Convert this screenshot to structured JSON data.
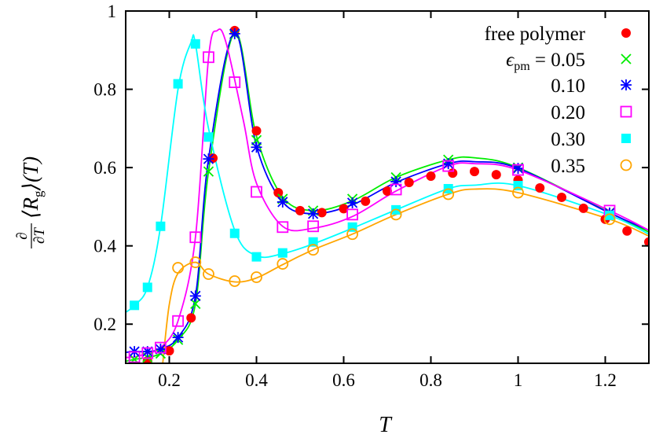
{
  "chart_data": {
    "type": "scatter",
    "title": "",
    "xlabel": "T",
    "ylabel": {
      "numerator": "∂",
      "denominator": "∂T",
      "body": "⟨R",
      "sub": "g",
      "tail": "⟩(T)"
    },
    "xlim": [
      0.1,
      1.3
    ],
    "ylim": [
      0.1,
      1.0
    ],
    "grid": false,
    "legend_placement": "top-right",
    "x_ticks": [
      {
        "v": 0.2,
        "label": "0.2"
      },
      {
        "v": 0.4,
        "label": "0.4"
      },
      {
        "v": 0.6,
        "label": "0.6"
      },
      {
        "v": 0.8,
        "label": "0.8"
      },
      {
        "v": 1.0,
        "label": "1"
      },
      {
        "v": 1.2,
        "label": "1.2"
      }
    ],
    "y_ticks": [
      {
        "v": 0.2,
        "label": "0.2"
      },
      {
        "v": 0.4,
        "label": "0.4"
      },
      {
        "v": 0.6,
        "label": "0.6"
      },
      {
        "v": 0.8,
        "label": "0.8"
      },
      {
        "v": 1.0,
        "label": "1"
      }
    ],
    "legend_prefix": {
      "symbol": "ϵ",
      "sub": "pm",
      "eq": " = "
    },
    "series": [
      {
        "name": "free polymer",
        "color": "#ff0000",
        "marker": "filled-circle",
        "x": [
          0.15,
          0.2,
          0.25,
          0.3,
          0.35,
          0.4,
          0.45,
          0.5,
          0.55,
          0.6,
          0.65,
          0.7,
          0.75,
          0.8,
          0.85,
          0.9,
          0.95,
          1.0,
          1.05,
          1.1,
          1.15,
          1.2,
          1.25,
          1.3
        ],
        "y": [
          0.106,
          0.132,
          0.216,
          0.624,
          0.95,
          0.694,
          0.536,
          0.49,
          0.485,
          0.495,
          0.514,
          0.54,
          0.562,
          0.578,
          0.586,
          0.59,
          0.582,
          0.568,
          0.548,
          0.524,
          0.496,
          0.468,
          0.438,
          0.41
        ],
        "line": null
      },
      {
        "name": "0.05",
        "color": "#00ee00",
        "marker": "cross",
        "x": [
          0.12,
          0.15,
          0.18,
          0.22,
          0.26,
          0.29,
          0.35,
          0.4,
          0.46,
          0.53,
          0.62,
          0.72,
          0.84,
          1.0,
          1.21
        ],
        "y": [
          0.11,
          0.115,
          0.125,
          0.16,
          0.252,
          0.59,
          0.94,
          0.67,
          0.52,
          0.49,
          0.52,
          0.575,
          0.62,
          0.6,
          0.485
        ],
        "line": {
          "x": [
            0.1,
            0.12,
            0.15,
            0.18,
            0.22,
            0.26,
            0.29,
            0.35,
            0.4,
            0.46,
            0.53,
            0.62,
            0.72,
            0.84,
            0.9,
            1.0,
            1.21,
            1.3
          ],
          "y": [
            0.105,
            0.11,
            0.115,
            0.125,
            0.16,
            0.252,
            0.59,
            0.945,
            0.68,
            0.525,
            0.49,
            0.515,
            0.575,
            0.62,
            0.625,
            0.6,
            0.485,
            0.435
          ]
        }
      },
      {
        "name": "0.10",
        "color": "#0000ff",
        "marker": "star",
        "x": [
          0.12,
          0.15,
          0.18,
          0.22,
          0.26,
          0.29,
          0.35,
          0.4,
          0.46,
          0.53,
          0.62,
          0.72,
          0.84,
          1.0,
          1.21
        ],
        "y": [
          0.13,
          0.13,
          0.136,
          0.166,
          0.272,
          0.622,
          0.942,
          0.652,
          0.512,
          0.482,
          0.51,
          0.564,
          0.61,
          0.598,
          0.484
        ],
        "line": {
          "x": [
            0.1,
            0.12,
            0.15,
            0.18,
            0.22,
            0.26,
            0.29,
            0.35,
            0.4,
            0.46,
            0.53,
            0.62,
            0.72,
            0.84,
            0.9,
            1.0,
            1.21,
            1.3
          ],
          "y": [
            0.128,
            0.13,
            0.13,
            0.136,
            0.166,
            0.272,
            0.622,
            0.945,
            0.655,
            0.512,
            0.482,
            0.505,
            0.562,
            0.61,
            0.615,
            0.598,
            0.484,
            0.44
          ]
        }
      },
      {
        "name": "0.20",
        "color": "#ff00ff",
        "marker": "open-square",
        "x": [
          0.12,
          0.15,
          0.18,
          0.22,
          0.26,
          0.29,
          0.35,
          0.4,
          0.46,
          0.53,
          0.62,
          0.72,
          0.84,
          1.0,
          1.21
        ],
        "y": [
          0.116,
          0.126,
          0.14,
          0.208,
          0.422,
          0.882,
          0.818,
          0.538,
          0.448,
          0.45,
          0.48,
          0.544,
          0.604,
          0.594,
          0.49
        ],
        "line": {
          "x": [
            0.1,
            0.12,
            0.15,
            0.18,
            0.22,
            0.26,
            0.29,
            0.31,
            0.33,
            0.37,
            0.4,
            0.46,
            0.53,
            0.62,
            0.72,
            0.84,
            0.9,
            1.0,
            1.21,
            1.3
          ],
          "y": [
            0.115,
            0.116,
            0.126,
            0.14,
            0.208,
            0.422,
            0.88,
            0.95,
            0.92,
            0.72,
            0.56,
            0.45,
            0.445,
            0.475,
            0.54,
            0.604,
            0.61,
            0.594,
            0.49,
            0.44
          ]
        }
      },
      {
        "name": "0.30",
        "color": "#00ffff",
        "marker": "filled-square",
        "x": [
          0.12,
          0.15,
          0.18,
          0.22,
          0.26,
          0.29,
          0.35,
          0.4,
          0.46,
          0.53,
          0.62,
          0.72,
          0.84,
          1.0,
          1.21
        ],
        "y": [
          0.248,
          0.294,
          0.45,
          0.814,
          0.916,
          0.678,
          0.432,
          0.372,
          0.382,
          0.41,
          0.448,
          0.492,
          0.546,
          0.554,
          0.478
        ],
        "line": {
          "x": [
            0.1,
            0.12,
            0.15,
            0.18,
            0.22,
            0.25,
            0.26,
            0.29,
            0.35,
            0.4,
            0.46,
            0.53,
            0.62,
            0.72,
            0.84,
            0.9,
            1.0,
            1.21,
            1.3
          ],
          "y": [
            0.23,
            0.248,
            0.294,
            0.45,
            0.8,
            0.92,
            0.916,
            0.7,
            0.44,
            0.375,
            0.38,
            0.405,
            0.445,
            0.492,
            0.546,
            0.555,
            0.554,
            0.478,
            0.43
          ]
        }
      },
      {
        "name": "0.35",
        "color": "#ffa500",
        "marker": "open-circle",
        "x": [
          0.22,
          0.26,
          0.29,
          0.35,
          0.4,
          0.46,
          0.53,
          0.62,
          0.72,
          0.84,
          1.0,
          1.21
        ],
        "y": [
          0.344,
          0.358,
          0.328,
          0.31,
          0.32,
          0.354,
          0.39,
          0.43,
          0.48,
          0.532,
          0.536,
          0.468
        ],
        "line": {
          "x": [
            0.185,
            0.2,
            0.22,
            0.26,
            0.29,
            0.35,
            0.4,
            0.46,
            0.53,
            0.62,
            0.72,
            0.84,
            0.9,
            1.0,
            1.21,
            1.3
          ],
          "y": [
            0.1,
            0.25,
            0.33,
            0.358,
            0.328,
            0.308,
            0.318,
            0.352,
            0.39,
            0.43,
            0.48,
            0.532,
            0.545,
            0.536,
            0.468,
            0.425
          ]
        }
      }
    ]
  }
}
